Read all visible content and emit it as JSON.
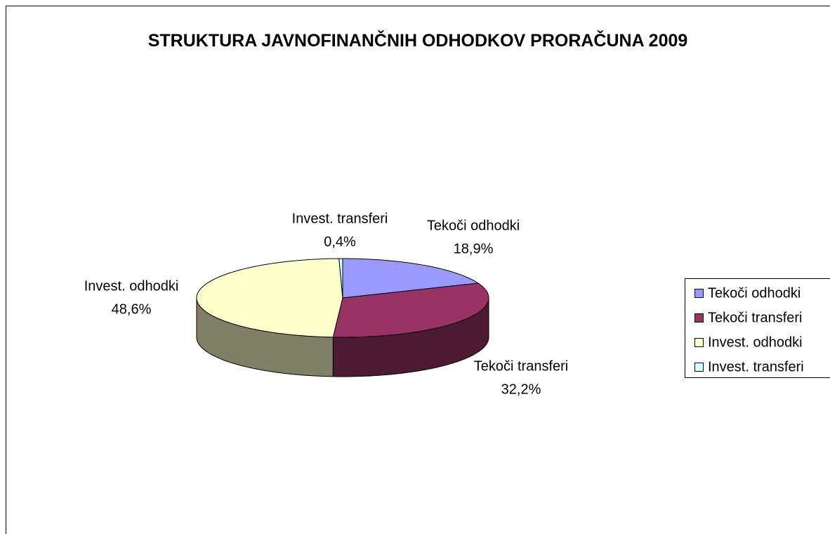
{
  "chart_data": {
    "type": "pie3d",
    "title": "STRUKTURA JAVNOFINANČNIH ODHODKOV PRORAČUNA 2009",
    "categories": [
      "Tekoči odhodki",
      "Tekoči transferi",
      "Invest. odhodki",
      "Invest. transferi"
    ],
    "values": [
      18.9,
      32.2,
      48.6,
      0.4
    ],
    "value_labels": [
      "18,9%",
      "32,2%",
      "48,6%",
      "0,4%"
    ],
    "colors": [
      "#9999ff",
      "#993366",
      "#ffffcc",
      "#ccffff"
    ],
    "legend": "right"
  }
}
